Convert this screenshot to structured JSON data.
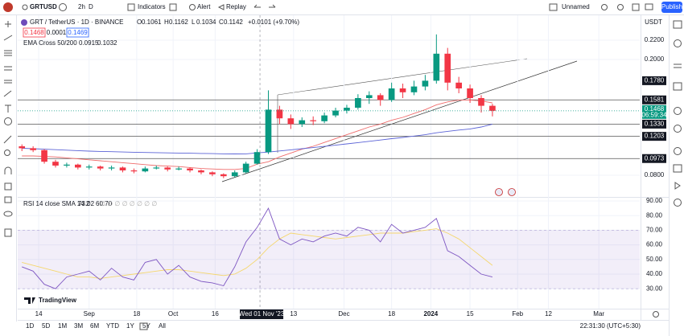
{
  "toolbar": {
    "symbol": "GRTUSD",
    "intervals": [
      "2h",
      "D"
    ],
    "buttons": [
      "Indicators",
      "Alert",
      "Replay"
    ],
    "layout_name": "Unnamed",
    "publish": "Publish"
  },
  "legend": {
    "title": "GRT / TetherUS · 1D · BINANCE",
    "ohlc": [
      {
        "key": "O",
        "value": "0.1061"
      },
      {
        "key": "H",
        "value": "0.1162"
      },
      {
        "key": "L",
        "value": "0.1034"
      },
      {
        "key": "C",
        "value": "0.1142"
      }
    ],
    "change": "+0.0101 (+9.70%)",
    "bid": "0.1468",
    "spread": "0.0001",
    "ask": "0.1469",
    "indicator": "EMA Cross 50/200",
    "indicator_values": [
      "0.0915",
      "0.1032"
    ]
  },
  "rsi_legend": {
    "title": "RSI 14 close SMA 14 2",
    "values": [
      "73.02",
      "60.70"
    ]
  },
  "currency": "USDT",
  "logo": "TradingView",
  "ranges": [
    "1D",
    "5D",
    "1M",
    "3M",
    "6M",
    "YTD",
    "1Y",
    "5Y",
    "All"
  ],
  "clock": "22:31:30 (UTC+5:30)",
  "chart_data": [
    {
      "type": "candlestick",
      "x": [
        -6,
        -2,
        2,
        6,
        10,
        14,
        18,
        22,
        26,
        30,
        34,
        38,
        42,
        46,
        50,
        54,
        58,
        62,
        66,
        70,
        74,
        78,
        82,
        86,
        90,
        94,
        98,
        102,
        106,
        110,
        114,
        118,
        122,
        126,
        130,
        134,
        138,
        142,
        146,
        150,
        154,
        158,
        162
      ],
      "open": [
        0.11,
        0.108,
        0.106,
        0.094,
        0.09,
        0.091,
        0.088,
        0.089,
        0.087,
        0.088,
        0.085,
        0.084,
        0.087,
        0.088,
        0.086,
        0.087,
        0.085,
        0.083,
        0.081,
        0.079,
        0.083,
        0.092,
        0.104,
        0.148,
        0.139,
        0.133,
        0.137,
        0.136,
        0.142,
        0.147,
        0.15,
        0.16,
        0.163,
        0.158,
        0.17,
        0.166,
        0.172,
        0.178,
        0.206,
        0.176,
        0.17,
        0.16,
        0.152
      ],
      "high": [
        0.112,
        0.11,
        0.107,
        0.096,
        0.093,
        0.092,
        0.091,
        0.09,
        0.09,
        0.089,
        0.087,
        0.089,
        0.09,
        0.089,
        0.089,
        0.088,
        0.086,
        0.084,
        0.082,
        0.085,
        0.094,
        0.107,
        0.168,
        0.152,
        0.143,
        0.14,
        0.141,
        0.145,
        0.15,
        0.153,
        0.164,
        0.167,
        0.165,
        0.176,
        0.175,
        0.178,
        0.184,
        0.226,
        0.212,
        0.182,
        0.174,
        0.163,
        0.154
      ],
      "low": [
        0.105,
        0.104,
        0.092,
        0.088,
        0.088,
        0.086,
        0.086,
        0.085,
        0.085,
        0.083,
        0.082,
        0.083,
        0.086,
        0.084,
        0.085,
        0.083,
        0.081,
        0.079,
        0.077,
        0.078,
        0.082,
        0.091,
        0.102,
        0.133,
        0.128,
        0.13,
        0.132,
        0.134,
        0.14,
        0.144,
        0.148,
        0.154,
        0.152,
        0.156,
        0.16,
        0.163,
        0.168,
        0.175,
        0.168,
        0.165,
        0.155,
        0.145,
        0.141
      ],
      "close": [
        0.108,
        0.106,
        0.094,
        0.09,
        0.091,
        0.088,
        0.089,
        0.087,
        0.088,
        0.085,
        0.084,
        0.087,
        0.088,
        0.086,
        0.087,
        0.085,
        0.083,
        0.081,
        0.079,
        0.083,
        0.092,
        0.104,
        0.148,
        0.139,
        0.133,
        0.137,
        0.136,
        0.142,
        0.147,
        0.15,
        0.16,
        0.163,
        0.158,
        0.17,
        0.166,
        0.172,
        0.178,
        0.206,
        0.176,
        0.17,
        0.16,
        0.152,
        0.1468
      ],
      "up_color": "#089981",
      "down_color": "#f23645",
      "lines": [
        {
          "color": "#ef6c6c",
          "values": [
            0.1,
            0.1,
            0.0995,
            0.099,
            0.098,
            0.097,
            0.096,
            0.095,
            0.094,
            0.093,
            0.092,
            0.091,
            0.09,
            0.0895,
            0.089,
            0.088,
            0.087,
            0.0865,
            0.086,
            0.086,
            0.087,
            0.0915,
            0.094,
            0.099,
            0.103,
            0.107,
            0.11,
            0.114,
            0.118,
            0.122,
            0.126,
            0.13,
            0.133,
            0.137,
            0.14,
            0.144,
            0.148,
            0.153,
            0.156,
            0.158,
            0.158,
            0.157,
            0.155
          ]
        },
        {
          "color": "#5b63d6",
          "values": [
            0.108,
            0.1075,
            0.107,
            0.1065,
            0.106,
            0.1055,
            0.105,
            0.1047,
            0.1044,
            0.1041,
            0.1038,
            0.1036,
            0.1034,
            0.1032,
            0.103,
            0.1028,
            0.1026,
            0.1024,
            0.1022,
            0.1021,
            0.1022,
            0.1032,
            0.104,
            0.1052,
            0.1063,
            0.1075,
            0.1087,
            0.1099,
            0.1112,
            0.1125,
            0.1138,
            0.1152,
            0.1165,
            0.1179,
            0.1192,
            0.1206,
            0.122,
            0.124,
            0.1255,
            0.1268,
            0.128,
            0.13,
            0.133
          ]
        }
      ],
      "xlim": [
        -7.5,
        214.6
      ],
      "xticks": [
        {
          "value": 0,
          "label": "14"
        },
        {
          "value": 18,
          "label": "Sep"
        },
        {
          "value": 35,
          "label": "18"
        },
        {
          "value": 48,
          "label": "Oct"
        },
        {
          "value": 63,
          "label": "16"
        },
        {
          "value": 91,
          "label": "13"
        },
        {
          "value": 109,
          "label": "Dec"
        },
        {
          "value": 126,
          "label": "18"
        },
        {
          "value": 140,
          "label": "2024"
        },
        {
          "value": 154,
          "label": "15"
        },
        {
          "value": 171,
          "label": "Feb"
        },
        {
          "value": 182,
          "label": "12"
        },
        {
          "value": 200,
          "label": "Mar"
        }
      ],
      "ylim": [
        0.0575,
        0.245
      ],
      "yticks": [
        {
          "value": 0.22,
          "label": "0.2200"
        },
        {
          "value": 0.2,
          "label": "0.2000"
        },
        {
          "value": 0.08,
          "label": "0.0800"
        }
      ],
      "price_lines": [
        {
          "value": 0.1581,
          "label": "0.1581"
        },
        {
          "value": 0.133,
          "label": "0.1330"
        },
        {
          "value": 0.1203,
          "label": "0.1203"
        },
        {
          "value": 0.0973,
          "label": "0.0973"
        }
      ],
      "alert_labels": [
        {
          "value": 0.178,
          "label": "0.1780"
        }
      ],
      "last_price": {
        "value": 0.1468,
        "label": "0.1468",
        "countdown": "06:59:34"
      },
      "crosshair": {
        "value": 79,
        "label": "Wed 01 Nov '23"
      }
    },
    {
      "type": "line",
      "x": [
        -6,
        -2,
        2,
        6,
        10,
        14,
        18,
        22,
        26,
        30,
        34,
        38,
        42,
        46,
        50,
        54,
        58,
        62,
        66,
        70,
        74,
        78,
        82,
        86,
        90,
        94,
        98,
        102,
        106,
        110,
        114,
        118,
        122,
        126,
        130,
        134,
        138,
        142,
        146,
        150,
        154,
        158,
        162
      ],
      "series": [
        {
          "color": "#7e57c2",
          "values": [
            45,
            42,
            33,
            30,
            38,
            40,
            42,
            36,
            44,
            38,
            36,
            48,
            50,
            40,
            46,
            38,
            35,
            34,
            32,
            45,
            62,
            72,
            85,
            64,
            60,
            64,
            62,
            66,
            68,
            66,
            72,
            70,
            62,
            74,
            68,
            70,
            72,
            78,
            56,
            52,
            46,
            40,
            38
          ]
        },
        {
          "color": "#f5d76e",
          "values": [
            48,
            46,
            44,
            42,
            40,
            38,
            38,
            37,
            38,
            39,
            40,
            41,
            42,
            43,
            43,
            42,
            41,
            40,
            39,
            40,
            44,
            50,
            58,
            64,
            68,
            67,
            66,
            65,
            64,
            65,
            66,
            67,
            68,
            68,
            68,
            69,
            70,
            71,
            68,
            64,
            58,
            52,
            46
          ]
        }
      ],
      "xlim": [
        -7.5,
        214.6
      ],
      "ylim": [
        21.3,
        92.2
      ],
      "yticks": [
        {
          "value": 90,
          "label": "90.00"
        },
        {
          "value": 80,
          "label": "80.00"
        },
        {
          "value": 70,
          "label": "70.00"
        },
        {
          "value": 60,
          "label": "60.00"
        },
        {
          "value": 50,
          "label": "50.00"
        },
        {
          "value": 40,
          "label": "40.00"
        },
        {
          "value": 30,
          "label": "30.00"
        }
      ],
      "band": [
        30,
        70
      ]
    }
  ]
}
